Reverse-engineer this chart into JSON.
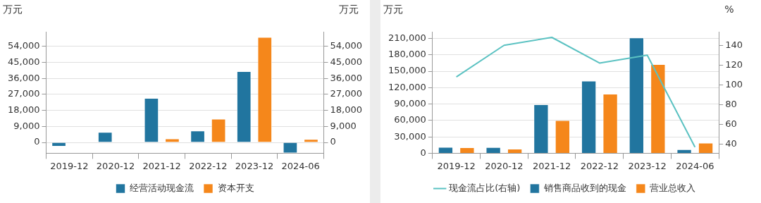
{
  "chart_data": [
    {
      "type": "bar",
      "categories": [
        "2019-12",
        "2020-12",
        "2021-12",
        "2022-12",
        "2023-12",
        "2024-06"
      ],
      "series": [
        {
          "name": "经营活动现金流",
          "color": "#21759f",
          "values": [
            -2400,
            5800,
            25000,
            6600,
            40000,
            -6100
          ]
        },
        {
          "name": "资本开支",
          "color": "#f5871b",
          "values": [
            null,
            200,
            2200,
            13300,
            59200,
            1850
          ]
        }
      ],
      "ylabel": "万元",
      "y2label": "万元",
      "ylim": [
        -6100,
        62200
      ],
      "yticks": [
        {
          "value": 0,
          "label": "0"
        },
        {
          "value": 9000,
          "label": "9,000"
        },
        {
          "value": 18000,
          "label": "18,000"
        },
        {
          "value": 27000,
          "label": "27,000"
        },
        {
          "value": 36000,
          "label": "36,000"
        },
        {
          "value": 45000,
          "label": "45,000"
        },
        {
          "value": 54000,
          "label": "54,000"
        }
      ],
      "y2lim": [
        -6100,
        62200
      ],
      "y2ticks": [
        {
          "value": 0,
          "label": "0"
        },
        {
          "value": 9000,
          "label": "9,000"
        },
        {
          "value": 18000,
          "label": "18,000"
        },
        {
          "value": 27000,
          "label": "27,000"
        },
        {
          "value": 36000,
          "label": "36,000"
        },
        {
          "value": 45000,
          "label": "45,000"
        },
        {
          "value": 54000,
          "label": "54,000"
        }
      ],
      "grid": "y",
      "legend": "bottom"
    },
    {
      "type": "bar",
      "categories": [
        "2019-12",
        "2020-12",
        "2021-12",
        "2022-12",
        "2023-12",
        "2024-06"
      ],
      "series": [
        {
          "name": "销售商品收到的现金",
          "color": "#21759f",
          "values": [
            11600,
            11100,
            89600,
            132900,
            211700,
            7300
          ]
        },
        {
          "name": "营业总收入",
          "color": "#f5871b",
          "values": [
            10700,
            8100,
            60400,
            108900,
            162900,
            19300
          ]
        },
        {
          "name": "现金流占比(右轴)",
          "type": "line",
          "axis": "y2",
          "marker": "none",
          "color": "#5bc2c2",
          "values": [
            108,
            140,
            148,
            122,
            130,
            37
          ]
        }
      ],
      "ylabel": "万元",
      "y2label": "%",
      "ylim": [
        0,
        222400
      ],
      "yticks": [
        {
          "value": 0,
          "label": "0"
        },
        {
          "value": 30000,
          "label": "30,000"
        },
        {
          "value": 60000,
          "label": "60,000"
        },
        {
          "value": 90000,
          "label": "90,000"
        },
        {
          "value": 120000,
          "label": "120,000"
        },
        {
          "value": 150000,
          "label": "150,000"
        },
        {
          "value": 180000,
          "label": "180,000"
        },
        {
          "value": 210000,
          "label": "210,000"
        }
      ],
      "y2lim": [
        30.8,
        153.7
      ],
      "y2ticks": [
        40,
        60,
        80,
        100,
        120,
        140
      ],
      "grid": "y",
      "legend": "bottom"
    }
  ]
}
